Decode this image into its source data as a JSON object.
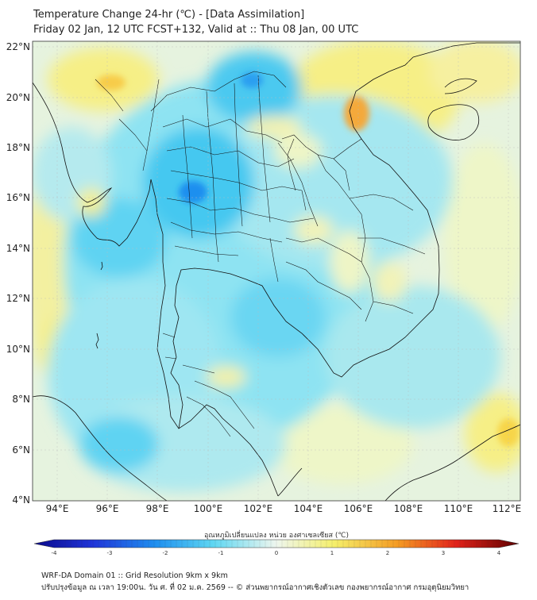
{
  "title": {
    "line1": "Temperature Change 24-hr (℃) - [Data Assimilation]",
    "line2": "Friday 02 Jan, 12 UTC FCST+132, Valid at :: Thu 08 Jan, 00 UTC"
  },
  "map": {
    "lon_labels": [
      "94°E",
      "96°E",
      "98°E",
      "100°E",
      "102°E",
      "104°E",
      "106°E",
      "108°E",
      "110°E",
      "112°E"
    ],
    "lat_labels": [
      "22°N",
      "20°N",
      "18°N",
      "16°N",
      "14°N",
      "12°N",
      "10°N",
      "8°N",
      "6°N",
      "4°N"
    ],
    "colors": {
      "cold_dark": "#0a0a8c",
      "cold": "#1f8fef",
      "cool": "#5fd7f2",
      "neutral": "#eef6ee",
      "warm": "#f5ef6a",
      "hot": "#f49b23",
      "hot_dark": "#5e0000"
    }
  },
  "colorbar": {
    "title": "อุณหภูมิเปลี่ยนแปลง หน่วย องศาเซลเซียส (℃)",
    "ticks": [
      "-4",
      "-3",
      "-2",
      "-1",
      "0",
      "1",
      "2",
      "3",
      "4"
    ]
  },
  "footer": {
    "line1": "WRF-DA Domain 01 :: Grid Resolution 9km x 9km",
    "line2": "ปรับปรุงข้อมูล ณ เวลา 19:00น. วัน ศ. ที่ 02 ม.ค. 2569 -- © ส่วนพยากรณ์อากาศเชิงตัวเลข กองพยากรณ์อากาศ กรมอุตุนิยมวิทยา"
  }
}
